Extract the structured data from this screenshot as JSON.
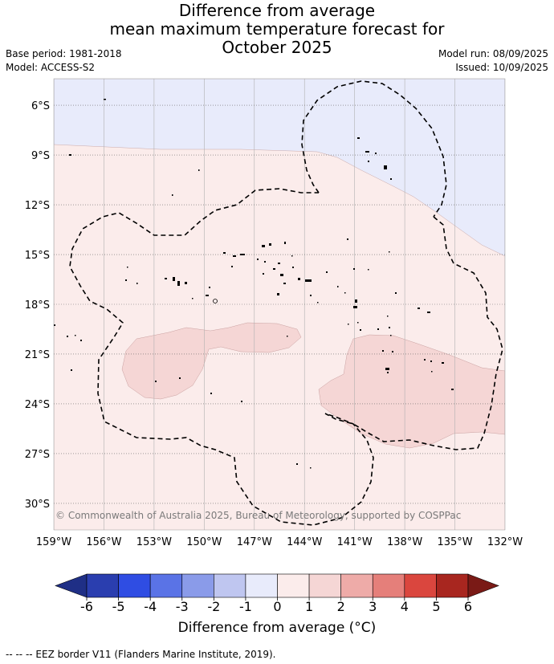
{
  "header": {
    "title_lines": [
      "Difference from average",
      "mean maximum temperature forecast for",
      "October 2025"
    ],
    "base_period": "Base period: 1981-2018",
    "model": "Model: ACCESS-S2",
    "model_run": "Model run: 08/09/2025",
    "issued": "Issued: 10/09/2025"
  },
  "map": {
    "lat_labels": [
      "6°S",
      "9°S",
      "12°S",
      "15°S",
      "18°S",
      "21°S",
      "24°S",
      "27°S",
      "30°S"
    ],
    "lat_values": [
      -6,
      -9,
      -12,
      -15,
      -18,
      -21,
      -24,
      -27,
      -30
    ],
    "lon_labels": [
      "159°W",
      "156°W",
      "153°W",
      "150°W",
      "147°W",
      "144°W",
      "141°W",
      "138°W",
      "135°W",
      "132°W"
    ],
    "lon_values": [
      -159,
      -156,
      -153,
      -150,
      -147,
      -144,
      -141,
      -138,
      -135,
      -132
    ],
    "lat_range": [
      -31.6,
      -4.4
    ],
    "lon_range": [
      -159,
      -132
    ],
    "copyright": "© Commonwealth of Australia 2025, Bureau of Meteorology, supported by COSPPac",
    "colors": {
      "band_0_to_1": "#fbeceb",
      "band_1_to_2": "#f5d6d5",
      "band_minus1_to_0": "#e8ebfb"
    }
  },
  "colorbar": {
    "ticks": [
      "-6",
      "-5",
      "-4",
      "-3",
      "-2",
      "-1",
      "0",
      "1",
      "2",
      "3",
      "4",
      "5",
      "6"
    ],
    "colors": [
      "#2a3eaf",
      "#2f4de3",
      "#5a73e6",
      "#8a9be9",
      "#bfc6f0",
      "#e8ebfb",
      "#fbeceb",
      "#f5d6d5",
      "#eeaba8",
      "#e57f7a",
      "#da463e",
      "#a8261f"
    ],
    "under_color": "#1f2f86",
    "over_color": "#7a1a16",
    "label": "Difference from average (°C)"
  },
  "footnote": "-- -- -- EEZ border V11 (Flanders Marine Institute, 2019)."
}
